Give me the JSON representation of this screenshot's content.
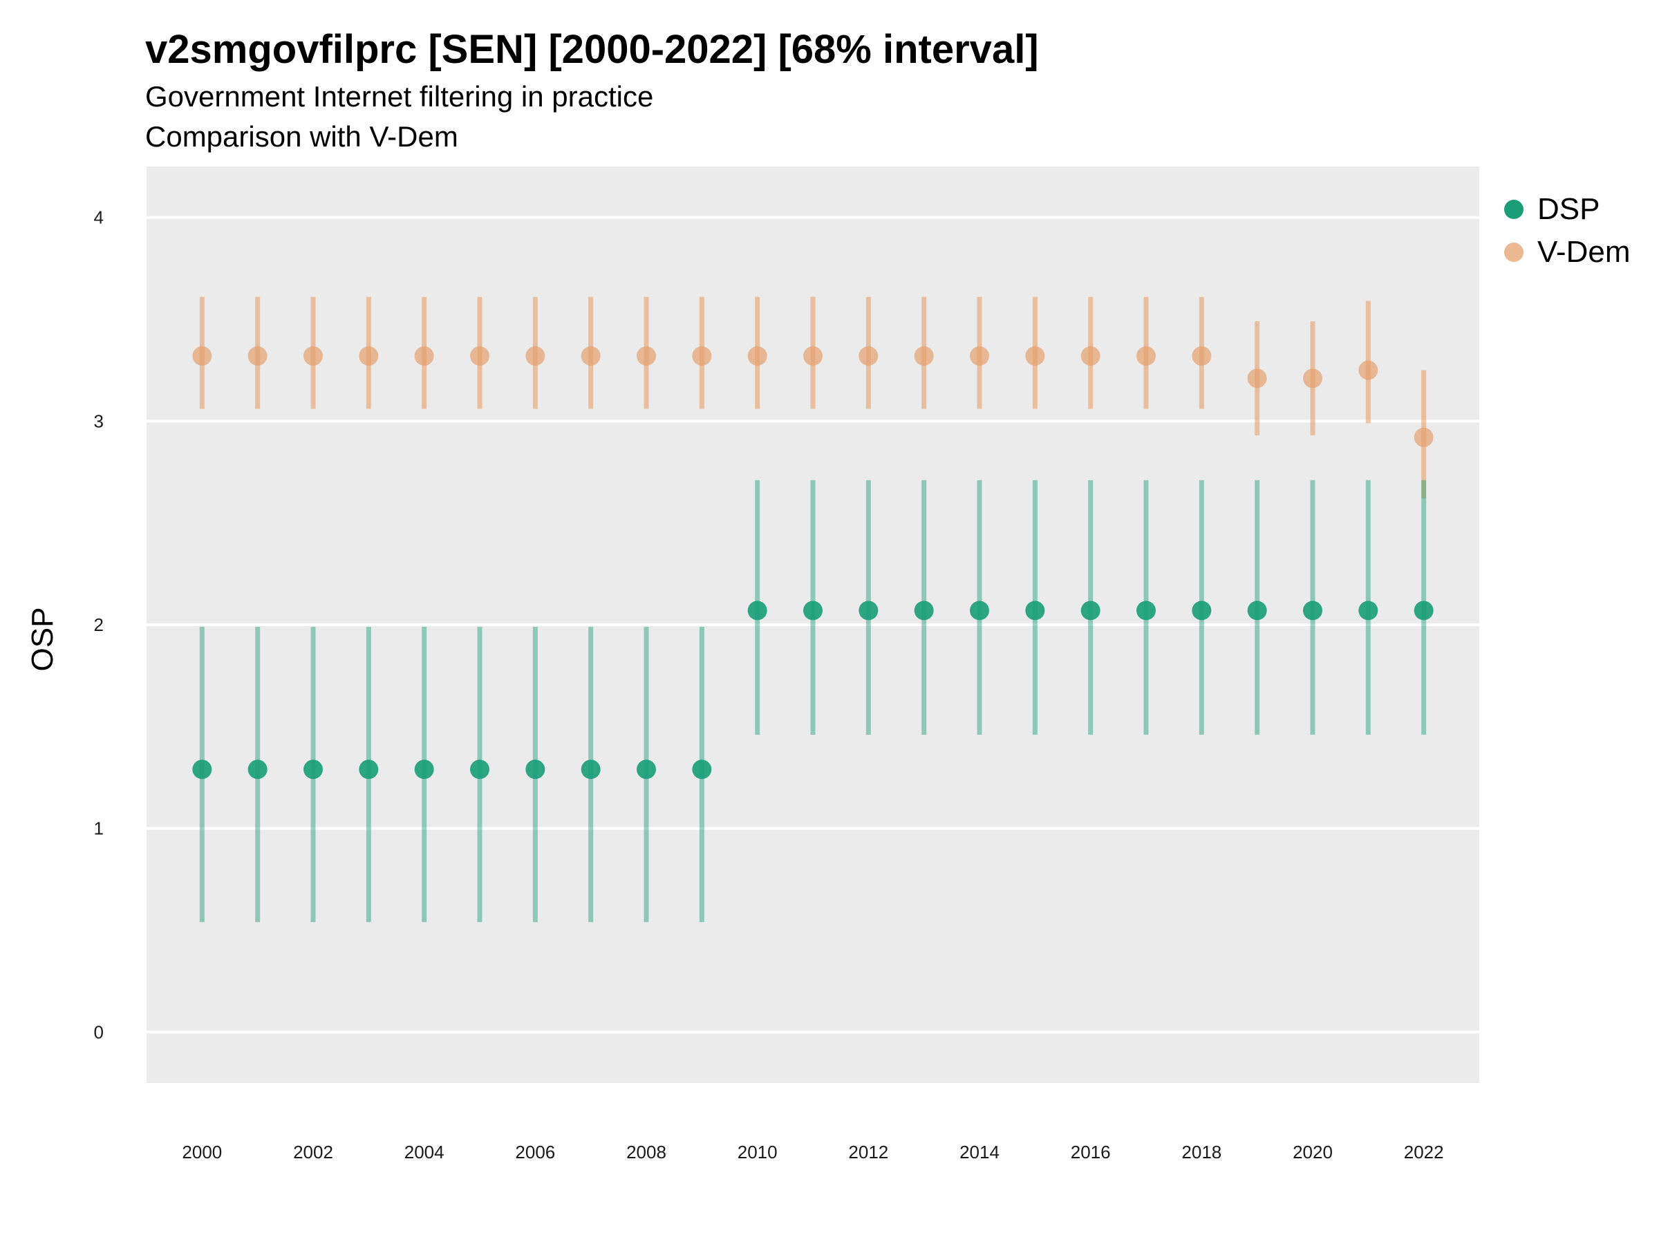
{
  "title": "v2smgovfilprc [SEN] [2000-2022] [68% interval]",
  "subtitle": "Government Internet filtering in practice",
  "subtitle2": "Comparison with V-Dem",
  "colors": {
    "dsp": "#1b9e77",
    "vdem": "#e6a06c",
    "panel": "#ebebeb",
    "grid": "#ffffff"
  },
  "legend": [
    {
      "name": "DSP",
      "color": "#1b9e77"
    },
    {
      "name": "V-Dem",
      "color": "#e6a06c"
    }
  ],
  "chart_data": {
    "type": "scatter",
    "title": "v2smgovfilprc [SEN] [2000-2022] [68% interval]",
    "subtitle": "Government Internet filtering in practice",
    "ylabel": "OSP",
    "xlabel": "",
    "ylim": [
      -0.25,
      4.25
    ],
    "xlim": [
      1999,
      2023
    ],
    "yticks": [
      0,
      1,
      2,
      3,
      4
    ],
    "xticks": [
      2000,
      2002,
      2004,
      2006,
      2008,
      2010,
      2012,
      2014,
      2016,
      2018,
      2020,
      2022
    ],
    "grid": true,
    "legend_position": "top-right",
    "x": [
      2000,
      2001,
      2002,
      2003,
      2004,
      2005,
      2006,
      2007,
      2008,
      2009,
      2010,
      2011,
      2012,
      2013,
      2014,
      2015,
      2016,
      2017,
      2018,
      2019,
      2020,
      2021,
      2022
    ],
    "series": [
      {
        "name": "DSP",
        "color": "#1b9e77",
        "values": [
          1.29,
          1.29,
          1.29,
          1.29,
          1.29,
          1.29,
          1.29,
          1.29,
          1.29,
          1.29,
          2.07,
          2.07,
          2.07,
          2.07,
          2.07,
          2.07,
          2.07,
          2.07,
          2.07,
          2.07,
          2.07,
          2.07,
          2.07
        ],
        "lower": [
          0.54,
          0.54,
          0.54,
          0.54,
          0.54,
          0.54,
          0.54,
          0.54,
          0.54,
          0.54,
          1.46,
          1.46,
          1.46,
          1.46,
          1.46,
          1.46,
          1.46,
          1.46,
          1.46,
          1.46,
          1.46,
          1.46,
          1.46
        ],
        "upper": [
          1.99,
          1.99,
          1.99,
          1.99,
          1.99,
          1.99,
          1.99,
          1.99,
          1.99,
          1.99,
          2.71,
          2.71,
          2.71,
          2.71,
          2.71,
          2.71,
          2.71,
          2.71,
          2.71,
          2.71,
          2.71,
          2.71,
          2.71
        ]
      },
      {
        "name": "V-Dem",
        "color": "#e6a06c",
        "values": [
          3.32,
          3.32,
          3.32,
          3.32,
          3.32,
          3.32,
          3.32,
          3.32,
          3.32,
          3.32,
          3.32,
          3.32,
          3.32,
          3.32,
          3.32,
          3.32,
          3.32,
          3.32,
          3.32,
          3.21,
          3.21,
          3.25,
          2.92
        ],
        "lower": [
          3.06,
          3.06,
          3.06,
          3.06,
          3.06,
          3.06,
          3.06,
          3.06,
          3.06,
          3.06,
          3.06,
          3.06,
          3.06,
          3.06,
          3.06,
          3.06,
          3.06,
          3.06,
          3.06,
          2.93,
          2.93,
          2.99,
          2.62
        ],
        "upper": [
          3.61,
          3.61,
          3.61,
          3.61,
          3.61,
          3.61,
          3.61,
          3.61,
          3.61,
          3.61,
          3.61,
          3.61,
          3.61,
          3.61,
          3.61,
          3.61,
          3.61,
          3.61,
          3.61,
          3.49,
          3.49,
          3.59,
          3.25
        ]
      }
    ]
  }
}
